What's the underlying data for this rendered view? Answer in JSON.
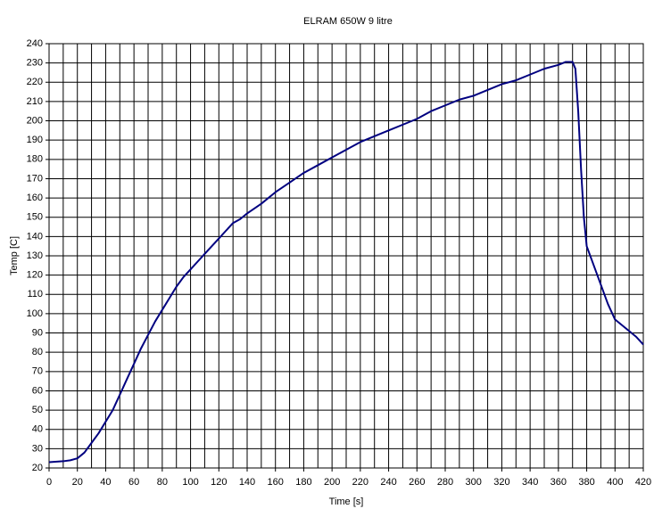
{
  "chart_data": {
    "type": "line",
    "title": "ELRAM 650W 9 litre",
    "x_label": "Time [s]",
    "y_label": "Temp [C]",
    "x": [
      0,
      10,
      15,
      20,
      25,
      30,
      35,
      40,
      45,
      50,
      55,
      60,
      65,
      70,
      75,
      80,
      85,
      90,
      95,
      100,
      105,
      110,
      115,
      120,
      125,
      130,
      135,
      140,
      150,
      160,
      170,
      180,
      190,
      200,
      210,
      220,
      230,
      240,
      250,
      260,
      270,
      280,
      290,
      300,
      310,
      320,
      330,
      340,
      350,
      360,
      365,
      370,
      372,
      374,
      376,
      378,
      380,
      385,
      390,
      395,
      400,
      405,
      410,
      415,
      420
    ],
    "series": [
      {
        "name": "Temp",
        "color": "#000080",
        "values": [
          23,
          23.5,
          24,
          25,
          28,
          33,
          38,
          44,
          50,
          58,
          66,
          74,
          82,
          89,
          96,
          102,
          108,
          114,
          119,
          123,
          127,
          131,
          135,
          139,
          143,
          147,
          149,
          152,
          157,
          163,
          168,
          173,
          177,
          181,
          185,
          189,
          192,
          195,
          198,
          201,
          205,
          208,
          211,
          213,
          216,
          219,
          221,
          224,
          227,
          229,
          230.5,
          230.5,
          227,
          205,
          175,
          150,
          135,
          125,
          115,
          105,
          97,
          94,
          91,
          88,
          84
        ]
      }
    ],
    "xlim": [
      0,
      420
    ],
    "ylim": [
      20,
      240
    ],
    "xticks": [
      0,
      20,
      40,
      60,
      80,
      100,
      120,
      140,
      160,
      180,
      200,
      220,
      240,
      260,
      280,
      300,
      320,
      340,
      360,
      380,
      400,
      420
    ],
    "xgridlines": [
      10,
      30,
      50,
      70,
      90,
      110,
      130,
      150,
      170,
      190,
      210,
      230,
      250,
      270,
      290,
      310,
      330,
      350,
      370,
      390,
      410
    ],
    "yticks": [
      20,
      30,
      40,
      50,
      60,
      70,
      80,
      90,
      100,
      110,
      120,
      130,
      140,
      150,
      160,
      170,
      180,
      190,
      200,
      210,
      220,
      230,
      240
    ],
    "grid": true
  }
}
